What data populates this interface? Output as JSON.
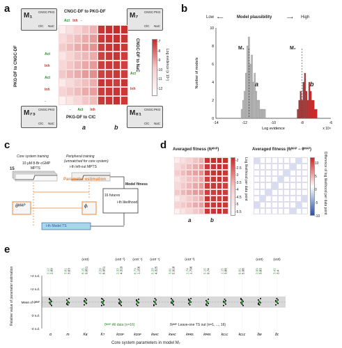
{
  "panel_a": {
    "letter": "a",
    "top_header": "CNGC-DF to PKG-DF",
    "left_header": "PKG-DF to CNGC-DF",
    "right_header": "CNGC-DF to NaC",
    "bottom_header": "PKG-DF to ClC",
    "colorbar_label": "Log evidence (x 10⁴)",
    "colorbar_ticks": [
      "-7",
      "-8",
      "-9",
      "-10",
      "-11",
      "-12"
    ],
    "cluster_labels": [
      "a",
      "b"
    ],
    "act_label": "Act",
    "inh_label": "Inh",
    "dash_label": "-",
    "models": [
      {
        "id": "M1",
        "text": "M₁",
        "top": "CNGC",
        "top2": "PKG",
        "bl": "ClC",
        "br": "NaC"
      },
      {
        "id": "M7",
        "text": "M₇",
        "top": "CNGC",
        "top2": "PKG",
        "bl": "ClC",
        "br": "NaC"
      },
      {
        "id": "M73",
        "text": "M₇₃",
        "top": "CNGC",
        "top2": "PKG",
        "bl": "ClC",
        "br": "NaC"
      },
      {
        "id": "M81",
        "text": "M₈₁",
        "top": "CNGC",
        "top2": "PKG",
        "bl": "ClC",
        "br": "NaC"
      }
    ],
    "heatmap": {
      "rows": 9,
      "cols": 9,
      "values": [
        [
          -11.8,
          -11.5,
          -11.2,
          -10.8,
          -10.4,
          -7.3,
          -7.2,
          -7.1,
          -7.2
        ],
        [
          -11.4,
          -11.0,
          -10.6,
          -10.2,
          -9.8,
          -7.4,
          -7.3,
          -7.2,
          -7.3
        ],
        [
          -11.0,
          -10.6,
          -10.2,
          -9.9,
          -9.6,
          -7.5,
          -7.3,
          -7.2,
          -7.4
        ],
        [
          -11.6,
          -11.2,
          -10.8,
          -10.5,
          -10.2,
          -7.6,
          -7.4,
          -7.3,
          -7.5
        ],
        [
          -11.3,
          -10.9,
          -10.5,
          -10.1,
          -9.8,
          -7.5,
          -7.4,
          -7.4,
          -7.6
        ],
        [
          -10.9,
          -10.5,
          -10.2,
          -9.8,
          -9.5,
          -7.6,
          -7.5,
          -7.4,
          -7.5
        ],
        [
          -11.7,
          -11.4,
          -11.0,
          -10.7,
          -10.3,
          -7.3,
          -7.4,
          -7.5,
          -7.3
        ],
        [
          -11.2,
          -10.9,
          -10.6,
          -10.2,
          -9.9,
          -7.5,
          -7.4,
          -7.3,
          -7.4
        ],
        [
          -11.9,
          -11.6,
          -11.3,
          -10.9,
          -10.6,
          -7.4,
          -7.3,
          -7.2,
          -7.4
        ]
      ]
    }
  },
  "panel_b": {
    "letter": "b",
    "low_label": "Low",
    "plausibility_label": "Model plausibility",
    "high_label": "High",
    "m1_label": "M₁",
    "m7_label": "M₇",
    "cluster_a": "a",
    "cluster_b": "b",
    "chart_data": {
      "type": "bar",
      "xlabel": "Log evidence",
      "ylabel": "Number of models",
      "x_multiplier": "x 10⁴",
      "xlim": [
        -14,
        -6
      ],
      "ylim": [
        0,
        10
      ],
      "xticks": [
        "-14",
        "-12",
        "-10",
        "-8",
        "-6"
      ],
      "yticks": [
        "0",
        "2",
        "4",
        "6",
        "8",
        "10"
      ],
      "series": [
        {
          "color": "#bdbdbd",
          "x": [
            -12.2,
            -12.1,
            -12.0,
            -11.9,
            -11.8,
            -11.7,
            -11.6,
            -11.5,
            -11.4,
            -11.3,
            -11.2,
            -11.1,
            -11.0,
            -10.9,
            -10.8,
            -10.7,
            -10.6
          ],
          "values": [
            1,
            2,
            3,
            5,
            8,
            9,
            6,
            7,
            4,
            5,
            3,
            2,
            2,
            1,
            1,
            1,
            1
          ]
        },
        {
          "color": "#c62828",
          "x": [
            -8.3,
            -8.2,
            -8.1,
            -8.0,
            -7.9,
            -7.8,
            -7.7,
            -7.6,
            -7.5,
            -7.4,
            -7.3,
            -7.2,
            -7.1,
            -7.0
          ],
          "values": [
            1,
            2,
            3,
            2,
            4,
            5,
            3,
            2,
            4,
            3,
            2,
            2,
            1,
            1
          ]
        }
      ],
      "dashed_lines_x": [
        -11.7,
        -8.0
      ]
    }
  },
  "panel_c": {
    "letter": "c",
    "core_training": "Core system training",
    "peripheral_training": "Peripheral training",
    "peripheral_sub": "(unmatched for core system)",
    "left_out_mpts": "i-th left-out MPTS",
    "stimulus": "10 μM 8-Br-cGMP",
    "mpts": "MPTS",
    "n15": "15",
    "param_estimation": "Parameter estimation",
    "theta_map": "θᴹᴬᴾ",
    "phi_i": "ϕᵢ",
    "model_fitness": "Model fitness",
    "i_th_likelihood": "i-th likelihood",
    "n16_futures": "16 futures",
    "ith_model_ts": "i-th Model TS"
  },
  "panel_d": {
    "letter": "d",
    "title_left": "Averaged fitness (θᵢᴹᴬᴾ)",
    "title_right": "Averaged fitness (θᵢᴹᴬᴾ − θᴹᴬᴾ)",
    "cb_left_label": "Log likelihood per data point",
    "cb_right_label": "Difference of log likelihood per data point",
    "cb_left_ticks": [
      "-2",
      "-2.5",
      "-3",
      "-3.5",
      "-4",
      "-4.5",
      "-5",
      "-5.5"
    ],
    "cb_right_ticks": [
      "10",
      "5",
      "0",
      "-5",
      "-10"
    ],
    "cluster_a": "a",
    "cluster_b": "b"
  },
  "panel_e": {
    "letter": "e",
    "ylabel": "Relative value of parameter estimation",
    "xlabel": "Core system parameters in model M₇",
    "yticks": [
      "+4 s.d.",
      "+2 s.d.",
      "Mean of θᴹᴬᴾ",
      "-2 s.d.",
      "-4 s.d."
    ],
    "scale_labels": [
      "(x10)",
      "(x10⁻²)",
      "(x10⁻¹)",
      "(x10⁻¹)",
      "(x10⁻³)",
      "(x10)",
      "(x10)"
    ],
    "param_names": [
      "α",
      "m",
      "Kʙ",
      "Kᴛ",
      "kᴄɢᴘ",
      "kᴄɢᴘ",
      "kɴᴀᴄ",
      "kɴᴀᴄ",
      "kᴘᴋɢ",
      "kᴘᴋɢ",
      "kᴄʟᴄ",
      "kᴄʟᴄ",
      "δᴍ",
      "δᴄ"
    ],
    "top_green": [
      "2.12",
      "3.61",
      "8.15",
      "3.20",
      "2.33",
      "6.79",
      "5.29",
      "3.01",
      "1.74",
      "5.15",
      "1.15",
      "6.61",
      "2.99",
      "3.41"
    ],
    "top_black": [
      "2.09",
      "3.63",
      "9.051",
      "8.951",
      "4.319",
      "1.156",
      "4.325",
      "5.918",
      "1.796",
      "9.74",
      "3.88",
      "5.08",
      "3.83",
      "3.4"
    ],
    "legend_all": "θᴹᴬᴾ All data (n=16)",
    "legend_loo": "θᵢᴹᴬᴾ Leave-one TS out (n=1, ..., 16)"
  },
  "colors": {
    "act_green": "#2e8b2e",
    "inh_red": "#c0392b",
    "heat_strong": "#d32f2f",
    "heat_light": "#fbe3e3",
    "hist_gray": "#bdbdbd",
    "hist_red": "#c62828",
    "orange": "#e8873a",
    "blue": "#2b4fa0",
    "light_blue": "#a9d7ea"
  }
}
